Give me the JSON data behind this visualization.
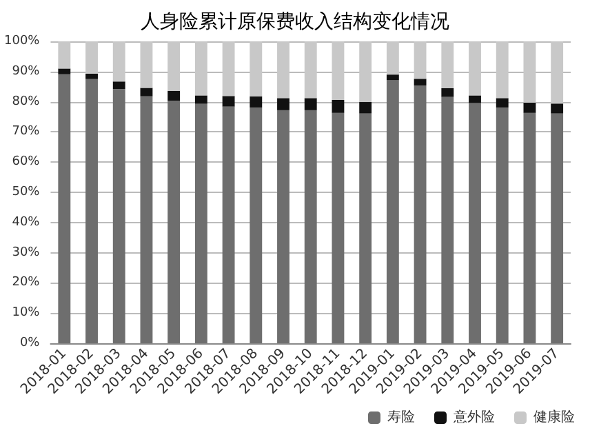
{
  "chart_data": {
    "type": "bar",
    "title": "人身险累计原保费收入结构变化情况",
    "stacked": true,
    "grid": "y",
    "legend": "bottom right",
    "categories": [
      "2018-01",
      "2018-02",
      "2018-03",
      "2018-04",
      "2018-05",
      "2018-06",
      "2018-07",
      "2018-08",
      "2018-09",
      "2018-10",
      "2018-11",
      "2018-12",
      "2019-01",
      "2019-02",
      "2019-03",
      "2019-04",
      "2019-05",
      "2019-06",
      "2019-07"
    ],
    "ylim": [
      0,
      100
    ],
    "yticks": [
      {
        "value": 0,
        "label": "0%"
      },
      {
        "value": 10,
        "label": "10%"
      },
      {
        "value": 20,
        "label": "20%"
      },
      {
        "value": 30,
        "label": "30%"
      },
      {
        "value": 40,
        "label": "40%"
      },
      {
        "value": 50,
        "label": "50%"
      },
      {
        "value": 60,
        "label": "60%"
      },
      {
        "value": 70,
        "label": "70%"
      },
      {
        "value": 80,
        "label": "80%"
      },
      {
        "value": 90,
        "label": "90%"
      },
      {
        "value": 100,
        "label": "100%"
      }
    ],
    "series": [
      {
        "name": "寿险",
        "color": "#6e6e6e",
        "values": [
          89.1,
          87.5,
          84.2,
          81.8,
          80.3,
          79.3,
          78.4,
          78.1,
          77.2,
          77.2,
          76.3,
          76.1,
          87.2,
          85.4,
          81.6,
          79.6,
          78.1,
          76.3,
          76.1
        ]
      },
      {
        "name": "意外险",
        "color": "#111111",
        "values": [
          1.9,
          1.8,
          2.5,
          2.8,
          3.3,
          2.8,
          3.5,
          3.7,
          4.0,
          4.0,
          4.3,
          3.8,
          1.8,
          2.2,
          2.9,
          2.5,
          3.1,
          3.4,
          3.3
        ]
      },
      {
        "name": "健康险",
        "color": "#c8c8c8",
        "values": [
          9.0,
          10.7,
          13.3,
          15.4,
          16.4,
          17.9,
          18.1,
          18.2,
          18.8,
          18.8,
          19.4,
          20.1,
          11.0,
          12.4,
          15.5,
          17.9,
          18.8,
          20.3,
          20.6
        ]
      }
    ]
  }
}
